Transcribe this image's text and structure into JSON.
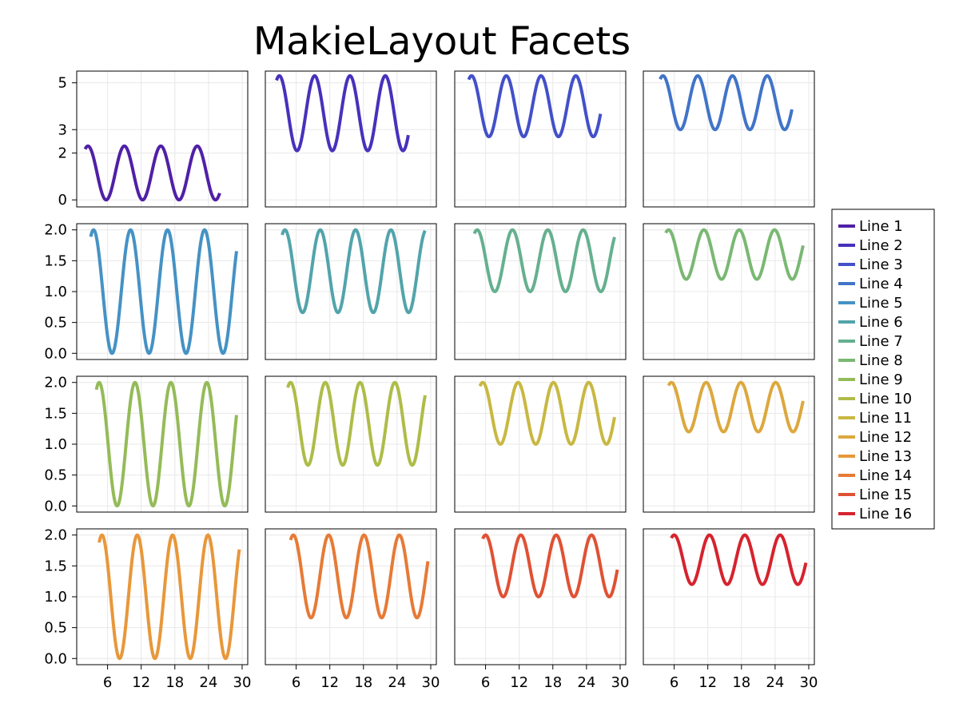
{
  "figure": {
    "title": "MakieLayout Facets"
  },
  "chart_data": {
    "type": "line",
    "title": "MakieLayout Facets",
    "layout": "4x4 facet grid",
    "grid": true,
    "legend_placement": "right",
    "rows": [
      {
        "ylim": [
          -0.3,
          5.5
        ],
        "yticks": [
          0,
          2,
          3,
          5
        ],
        "yticklabels": [
          "0",
          "2",
          "3",
          "5"
        ]
      },
      {
        "ylim": [
          -0.1,
          2.1
        ],
        "yticks": [
          0.0,
          0.5,
          1.0,
          1.5,
          2.0
        ],
        "yticklabels": [
          "0.0",
          "0.5",
          "1.0",
          "1.5",
          "2.0"
        ]
      },
      {
        "ylim": [
          -0.1,
          2.1
        ],
        "yticks": [
          0.0,
          0.5,
          1.0,
          1.5,
          2.0
        ],
        "yticklabels": [
          "0.0",
          "0.5",
          "1.0",
          "1.5",
          "2.0"
        ]
      },
      {
        "ylim": [
          -0.1,
          2.1
        ],
        "yticks": [
          0.0,
          0.5,
          1.0,
          1.5,
          2.0
        ],
        "yticklabels": [
          "0.0",
          "0.5",
          "1.0",
          "1.5",
          "2.0"
        ]
      }
    ],
    "xlim": [
      0.5,
      31
    ],
    "xticks": [
      6,
      12,
      18,
      24,
      30
    ],
    "xticklabels": [
      "6",
      "12",
      "18",
      "24",
      "30"
    ],
    "series": [
      {
        "name": "Line 1",
        "color": "#5020a6",
        "x_start": 2,
        "x_end": 26,
        "y_center": 1.15,
        "amplitude": 1.15,
        "period": 6.5
      },
      {
        "name": "Line 2",
        "color": "#4731bc",
        "x_start": 2.5,
        "x_end": 26,
        "y_center": 3.7,
        "amplitude": 1.6,
        "period": 6.3
      },
      {
        "name": "Line 3",
        "color": "#4350c9",
        "x_start": 3,
        "x_end": 26.5,
        "y_center": 4.0,
        "amplitude": 1.3,
        "period": 6.2
      },
      {
        "name": "Line 4",
        "color": "#4174c8",
        "x_start": 3.5,
        "x_end": 27,
        "y_center": 4.15,
        "amplitude": 1.15,
        "period": 6.2
      },
      {
        "name": "Line 5",
        "color": "#4592c4",
        "x_start": 3,
        "x_end": 29,
        "y_center": 1.0,
        "amplitude": 1.0,
        "period": 6.6
      },
      {
        "name": "Line 6",
        "color": "#52a4ab",
        "x_start": 3.5,
        "x_end": 29,
        "y_center": 1.33,
        "amplitude": 0.67,
        "period": 6.3
      },
      {
        "name": "Line 7",
        "color": "#65b08f",
        "x_start": 4,
        "x_end": 29,
        "y_center": 1.5,
        "amplitude": 0.5,
        "period": 6.3
      },
      {
        "name": "Line 8",
        "color": "#7ab873",
        "x_start": 4.5,
        "x_end": 29,
        "y_center": 1.6,
        "amplitude": 0.4,
        "period": 6.3
      },
      {
        "name": "Line 9",
        "color": "#94bb58",
        "x_start": 4,
        "x_end": 29,
        "y_center": 1.0,
        "amplitude": 1.0,
        "period": 6.4
      },
      {
        "name": "Line 10",
        "color": "#aebc48",
        "x_start": 4.5,
        "x_end": 29,
        "y_center": 1.33,
        "amplitude": 0.67,
        "period": 6.2
      },
      {
        "name": "Line 11",
        "color": "#c8b842",
        "x_start": 5,
        "x_end": 29,
        "y_center": 1.5,
        "amplitude": 0.5,
        "period": 6.3
      },
      {
        "name": "Line 12",
        "color": "#dca83e",
        "x_start": 5,
        "x_end": 29,
        "y_center": 1.6,
        "amplitude": 0.4,
        "period": 6.2
      },
      {
        "name": "Line 13",
        "color": "#e8973a",
        "x_start": 4.5,
        "x_end": 29.5,
        "y_center": 1.0,
        "amplitude": 1.0,
        "period": 6.3
      },
      {
        "name": "Line 14",
        "color": "#e67a36",
        "x_start": 5,
        "x_end": 29.5,
        "y_center": 1.33,
        "amplitude": 0.67,
        "period": 6.3
      },
      {
        "name": "Line 15",
        "color": "#e05134",
        "x_start": 5.5,
        "x_end": 29.5,
        "y_center": 1.5,
        "amplitude": 0.5,
        "period": 6.3
      },
      {
        "name": "Line 16",
        "color": "#d6232e",
        "x_start": 5.5,
        "x_end": 29.5,
        "y_center": 1.6,
        "amplitude": 0.4,
        "period": 6.3
      }
    ]
  }
}
